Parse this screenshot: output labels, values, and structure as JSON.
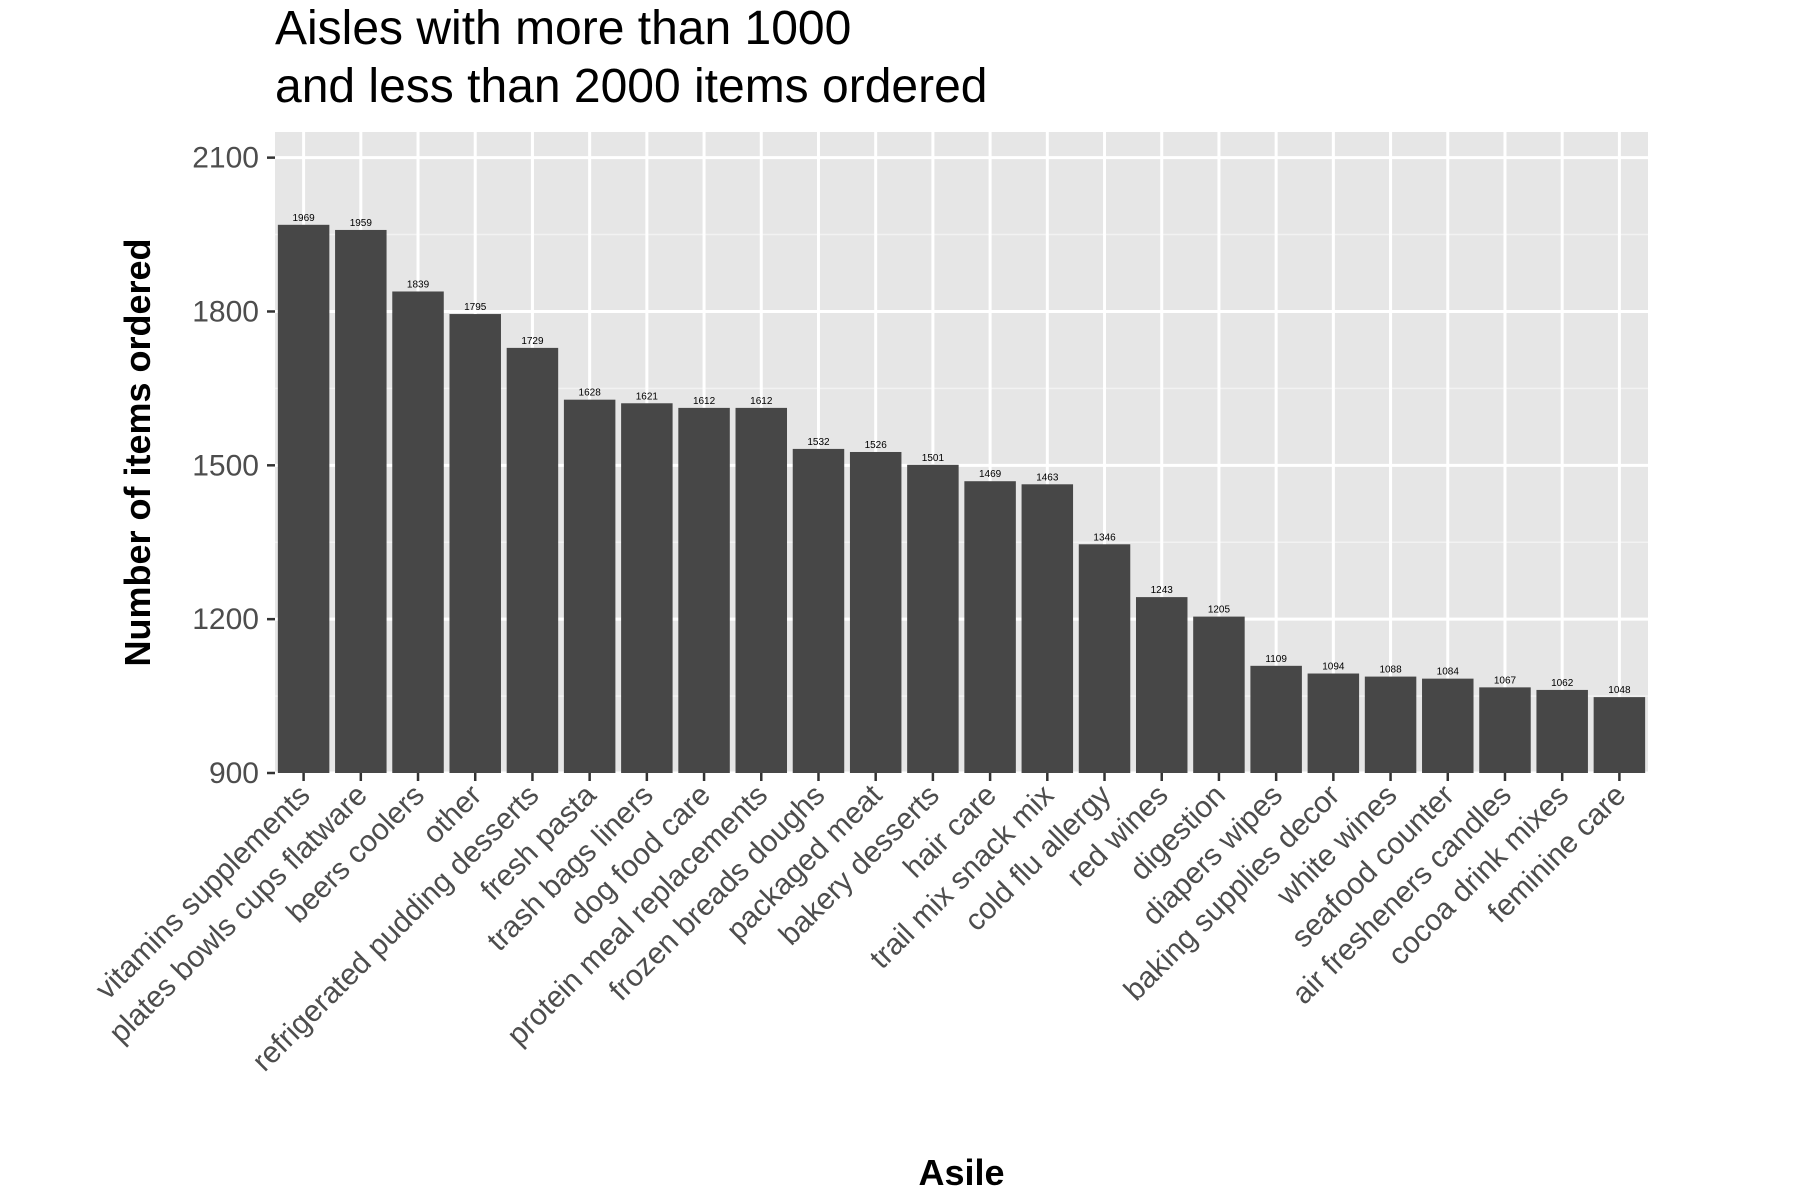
{
  "chart_data": {
    "type": "bar",
    "title_line1": "Aisles with more than 1000",
    "title_line2": "and less than 2000 items ordered",
    "xlabel": "Asile",
    "ylabel": "Number of items ordered",
    "ylim": [
      900,
      2150
    ],
    "yticks": [
      900,
      1200,
      1500,
      1800,
      2100
    ],
    "grid": true,
    "bar_color": "#474747",
    "panel_color": "#e6e6e6",
    "categories": [
      "vitamins supplements",
      "plates bowls cups flatware",
      "beers coolers",
      "other",
      "refrigerated pudding desserts",
      "fresh pasta",
      "trash bags liners",
      "dog food care",
      "protein meal replacements",
      "frozen breads doughs",
      "packaged meat",
      "bakery desserts",
      "hair care",
      "trail mix snack mix",
      "cold flu allergy",
      "red wines",
      "digestion",
      "diapers wipes",
      "baking supplies decor",
      "white wines",
      "seafood counter",
      "air fresheners candles",
      "cocoa drink mixes",
      "feminine care"
    ],
    "values": [
      1969,
      1959,
      1839,
      1795,
      1729,
      1628,
      1621,
      1612,
      1612,
      1532,
      1526,
      1501,
      1469,
      1463,
      1346,
      1243,
      1205,
      1109,
      1094,
      1088,
      1084,
      1067,
      1062,
      1048
    ]
  }
}
